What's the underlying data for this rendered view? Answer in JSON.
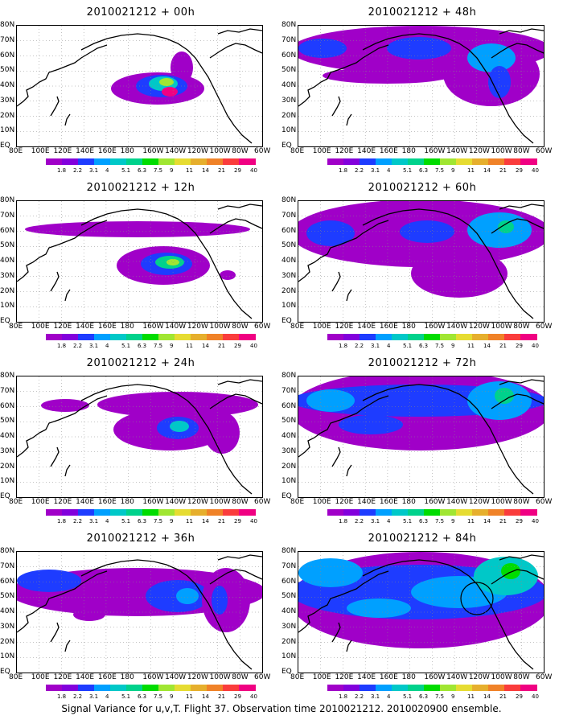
{
  "panels": [
    {
      "title": "2010021212 + 00h",
      "level": 0
    },
    {
      "title": "2010021212 + 48h",
      "level": 4
    },
    {
      "title": "2010021212 + 12h",
      "level": 1
    },
    {
      "title": "2010021212 + 60h",
      "level": 5
    },
    {
      "title": "2010021212 + 24h",
      "level": 2
    },
    {
      "title": "2010021212 + 72h",
      "level": 6
    },
    {
      "title": "2010021212 + 36h",
      "level": 3
    },
    {
      "title": "2010021212 + 84h",
      "level": 7
    }
  ],
  "lat_labels": [
    "80N",
    "70N",
    "60N",
    "50N",
    "40N",
    "30N",
    "20N",
    "10N",
    "EQ"
  ],
  "lon_labels": [
    "80E",
    "100E",
    "120E",
    "140E",
    "160E",
    "180",
    "160W",
    "140W",
    "120W",
    "100W",
    "80W",
    "60W"
  ],
  "colorbar": {
    "labels": [
      "1.8",
      "2.2",
      "3.1",
      "4",
      "5.1",
      "6.3",
      "7.5",
      "9",
      "11",
      "14",
      "21",
      "29",
      "40"
    ],
    "colors": [
      "#a000c8",
      "#8200dc",
      "#1e3cff",
      "#00a0ff",
      "#00c8c8",
      "#00d28c",
      "#00dc00",
      "#a0e632",
      "#e6dc32",
      "#e6af2d",
      "#f08228",
      "#fa3c3c",
      "#f00082"
    ]
  },
  "caption": "Signal Variance for u,v,T. Flight 37. Observation time 2010021212. 2010020900 ensemble."
}
